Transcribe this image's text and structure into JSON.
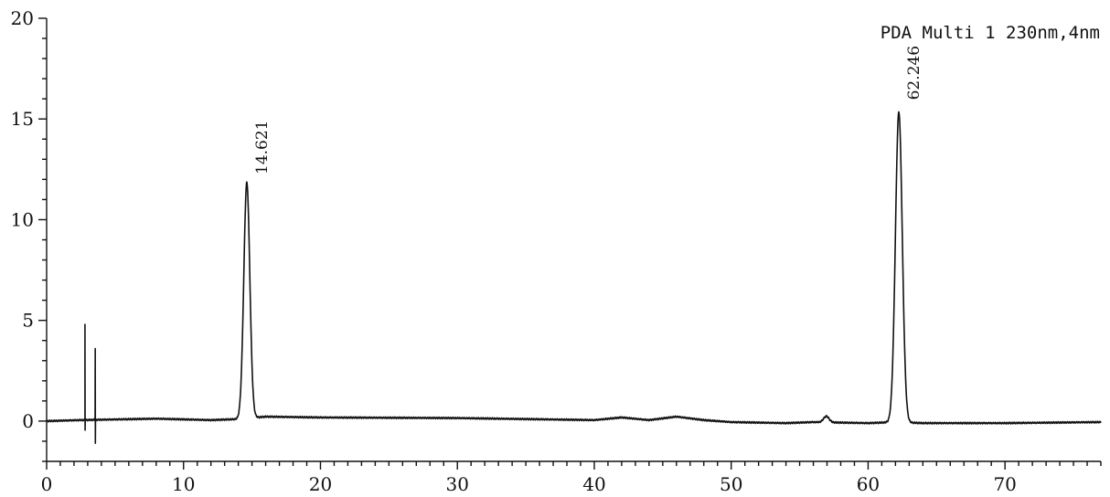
{
  "chart_data": {
    "type": "line",
    "title": "",
    "xlabel": "",
    "ylabel": "",
    "xlim": [
      0,
      77
    ],
    "ylim": [
      -2,
      20
    ],
    "x_ticks": [
      "0",
      "10",
      "20",
      "30",
      "40",
      "50",
      "60",
      "70"
    ],
    "y_ticks": [
      "0",
      "5",
      "10",
      "15",
      "20"
    ],
    "grid": false,
    "legend": {
      "text": "PDA Multi 1 230nm,4nm",
      "placement": "top-right"
    },
    "series": [
      {
        "name": "PDA Multi 1 230nm,4nm",
        "baseline_points": [
          [
            0,
            0
          ],
          [
            2.5,
            0.05
          ],
          [
            8,
            0.12
          ],
          [
            12,
            0.05
          ],
          [
            14,
            0.1
          ],
          [
            16,
            0.22
          ],
          [
            20,
            0.18
          ],
          [
            30,
            0.15
          ],
          [
            40,
            0.05
          ],
          [
            42,
            0.18
          ],
          [
            44,
            0.05
          ],
          [
            46,
            0.22
          ],
          [
            48,
            0.05
          ],
          [
            50,
            -0.05
          ],
          [
            54,
            -0.1
          ],
          [
            56,
            -0.05
          ],
          [
            60,
            -0.1
          ],
          [
            62,
            -0.05
          ],
          [
            64,
            -0.1
          ],
          [
            70,
            -0.1
          ],
          [
            77,
            -0.05
          ]
        ],
        "spikes": [
          {
            "x": 2.8,
            "y_max": 4.8,
            "y_min": -0.45
          },
          {
            "x": 3.55,
            "y_max": 3.6,
            "y_min": -1.1
          }
        ],
        "peaks": [
          {
            "x": 14.621,
            "height": 11.7,
            "width": 0.22,
            "label": "14.621"
          },
          {
            "x": 56.95,
            "height": 0.3,
            "width": 0.2,
            "label": ""
          },
          {
            "x": 62.246,
            "height": 15.4,
            "width": 0.25,
            "label": "62.246"
          }
        ]
      }
    ]
  }
}
